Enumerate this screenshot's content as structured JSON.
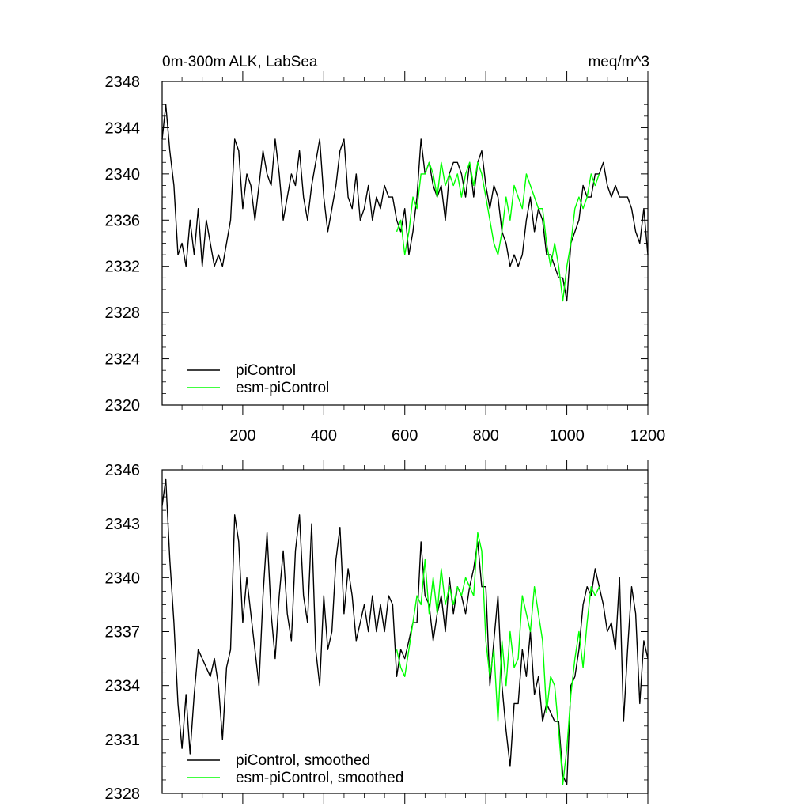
{
  "chart_data": [
    {
      "type": "line",
      "title_left": "0m-300m ALK, LabSea",
      "title_right": "meq/m^3",
      "xlim": [
        1,
        1200
      ],
      "ylim": [
        2320,
        2348
      ],
      "yticks": [
        2320,
        2324,
        2328,
        2332,
        2336,
        2340,
        2344,
        2348
      ],
      "ytick_labels": [
        "2320",
        "2324",
        "2328",
        "2332",
        "2336",
        "2340",
        "2344",
        "2348"
      ],
      "xticks": [
        200,
        400,
        600,
        800,
        1000,
        1200
      ],
      "xtick_labels": [
        "200",
        "400",
        "600",
        "800",
        "1000",
        "1200"
      ],
      "legend_position": "bottom-left",
      "series": [
        {
          "name": "piControl",
          "color": "#000000",
          "x": [
            1,
            10,
            20,
            30,
            40,
            50,
            60,
            70,
            80,
            90,
            100,
            110,
            120,
            130,
            140,
            150,
            160,
            170,
            180,
            190,
            200,
            210,
            220,
            230,
            240,
            250,
            260,
            270,
            280,
            290,
            300,
            310,
            320,
            330,
            340,
            350,
            360,
            370,
            380,
            390,
            400,
            410,
            420,
            430,
            440,
            450,
            460,
            470,
            480,
            490,
            500,
            510,
            520,
            530,
            540,
            550,
            560,
            570,
            580,
            590,
            600,
            610,
            620,
            630,
            640,
            650,
            660,
            670,
            680,
            690,
            700,
            710,
            720,
            730,
            740,
            750,
            760,
            770,
            780,
            790,
            800,
            810,
            820,
            830,
            840,
            850,
            860,
            870,
            880,
            890,
            900,
            910,
            920,
            930,
            940,
            950,
            960,
            970,
            980,
            990,
            1000,
            1010,
            1020,
            1030,
            1040,
            1050,
            1060,
            1070,
            1080,
            1090,
            1100,
            1110,
            1120,
            1130,
            1140,
            1150,
            1160,
            1170,
            1180,
            1190,
            1200
          ],
          "values": [
            2343,
            2346,
            2342,
            2339,
            2333,
            2334,
            2332,
            2336,
            2333,
            2337,
            2332,
            2336,
            2334,
            2332,
            2333,
            2332,
            2334,
            2336,
            2343,
            2342,
            2337,
            2340,
            2339,
            2336,
            2339,
            2342,
            2340,
            2339,
            2343,
            2340,
            2336,
            2338,
            2340,
            2339,
            2342,
            2338,
            2336,
            2339,
            2341,
            2343,
            2338,
            2335,
            2337,
            2339,
            2342,
            2343,
            2338,
            2337,
            2340,
            2336,
            2337,
            2339,
            2336,
            2338,
            2337,
            2339,
            2338,
            2338,
            2336,
            2335,
            2337,
            2333,
            2335,
            2338,
            2343,
            2340,
            2341,
            2339,
            2338,
            2339,
            2336,
            2340,
            2341,
            2341,
            2340,
            2338,
            2341,
            2338,
            2341,
            2342,
            2339,
            2337,
            2339,
            2338,
            2335,
            2334,
            2332,
            2333,
            2332,
            2333,
            2336,
            2338,
            2335,
            2337,
            2336,
            2333,
            2333,
            2332,
            2331,
            2331,
            2329,
            2334,
            2335,
            2336,
            2339,
            2338,
            2338,
            2340,
            2340,
            2341,
            2339,
            2338,
            2339,
            2338,
            2338,
            2338,
            2337,
            2335,
            2334,
            2337,
            2333
          ]
        },
        {
          "name": "esm-piControl",
          "color": "#00ff00",
          "x": [
            580,
            590,
            600,
            610,
            620,
            630,
            640,
            650,
            660,
            670,
            680,
            690,
            700,
            710,
            720,
            730,
            740,
            750,
            760,
            770,
            780,
            790,
            800,
            810,
            820,
            830,
            840,
            850,
            860,
            870,
            880,
            890,
            900,
            910,
            920,
            930,
            940,
            950,
            960,
            970,
            980,
            990,
            1000,
            1010,
            1020,
            1030,
            1040,
            1050,
            1060,
            1070,
            1080
          ],
          "values": [
            2335,
            2336,
            2333,
            2335,
            2338,
            2337,
            2340,
            2340,
            2341,
            2340,
            2338,
            2341,
            2339,
            2340,
            2339,
            2340,
            2338,
            2340,
            2341,
            2339,
            2341,
            2340,
            2338,
            2336,
            2334,
            2333,
            2335,
            2338,
            2336,
            2339,
            2338,
            2337,
            2340,
            2339,
            2338,
            2337,
            2337,
            2334,
            2332,
            2334,
            2332,
            2329,
            2332,
            2334,
            2337,
            2338,
            2337,
            2338,
            2340,
            2339,
            2340
          ]
        }
      ]
    },
    {
      "type": "line",
      "xlim": [
        1,
        1200
      ],
      "ylim": [
        2328,
        2346
      ],
      "yticks": [
        2328,
        2331,
        2334,
        2337,
        2340,
        2343,
        2346
      ],
      "ytick_labels": [
        "2328",
        "2331",
        "2334",
        "2337",
        "2340",
        "2343",
        "2346"
      ],
      "xticks": [
        200,
        400,
        600,
        800,
        1000,
        1200
      ],
      "legend_position": "bottom-left",
      "series": [
        {
          "name": "piControl, smoothed",
          "color": "#000000",
          "x": [
            1,
            10,
            20,
            30,
            40,
            50,
            60,
            70,
            80,
            90,
            100,
            110,
            120,
            130,
            140,
            150,
            160,
            170,
            180,
            190,
            200,
            210,
            220,
            230,
            240,
            250,
            260,
            270,
            280,
            290,
            300,
            310,
            320,
            330,
            340,
            350,
            360,
            370,
            380,
            390,
            400,
            410,
            420,
            430,
            440,
            450,
            460,
            470,
            480,
            490,
            500,
            510,
            520,
            530,
            540,
            550,
            560,
            570,
            580,
            590,
            600,
            610,
            620,
            630,
            640,
            650,
            660,
            670,
            680,
            690,
            700,
            710,
            720,
            730,
            740,
            750,
            760,
            770,
            780,
            790,
            800,
            810,
            820,
            830,
            840,
            850,
            860,
            870,
            880,
            890,
            900,
            910,
            920,
            930,
            940,
            950,
            960,
            970,
            980,
            990,
            1000,
            1010,
            1020,
            1030,
            1040,
            1050,
            1060,
            1070,
            1080,
            1090,
            1100,
            1110,
            1120,
            1130,
            1140,
            1150,
            1160,
            1170,
            1180,
            1190,
            1200
          ],
          "values": [
            2344,
            2345.5,
            2341,
            2337.5,
            2333,
            2330.5,
            2333.5,
            2330.2,
            2333.5,
            2336,
            2335.5,
            2335,
            2334.5,
            2335.5,
            2334,
            2331,
            2335,
            2336,
            2343.5,
            2342,
            2337.5,
            2340,
            2338,
            2336,
            2334,
            2339,
            2342.5,
            2338,
            2335.5,
            2339,
            2341.5,
            2338,
            2336.5,
            2341.5,
            2343.5,
            2339,
            2337.5,
            2343,
            2336,
            2334,
            2339,
            2336,
            2337,
            2341,
            2342.8,
            2338,
            2340.5,
            2339,
            2336.5,
            2337.5,
            2338.5,
            2337,
            2339,
            2337,
            2338.5,
            2337,
            2339,
            2338.5,
            2334.5,
            2336,
            2335.5,
            2336.5,
            2337.5,
            2337.5,
            2342,
            2339,
            2338.5,
            2336.5,
            2338,
            2339,
            2337,
            2340,
            2338,
            2339.5,
            2339,
            2338,
            2339.5,
            2340.5,
            2342,
            2339.5,
            2339.5,
            2334,
            2336.5,
            2339,
            2334,
            2331.5,
            2329.5,
            2333,
            2333,
            2336,
            2334.5,
            2337,
            2333.5,
            2334.5,
            2332,
            2333,
            2332.5,
            2332,
            2332,
            2329,
            2328.5,
            2334,
            2334.5,
            2336,
            2338.5,
            2339.5,
            2339,
            2340.5,
            2339.5,
            2338.5,
            2337,
            2337.5,
            2336,
            2340,
            2332,
            2336,
            2339.5,
            2338,
            2333,
            2336.5,
            2335.5
          ]
        },
        {
          "name": "esm-piControl, smoothed",
          "color": "#00ff00",
          "x": [
            580,
            590,
            600,
            610,
            620,
            630,
            640,
            650,
            660,
            670,
            680,
            690,
            700,
            710,
            720,
            730,
            740,
            750,
            760,
            770,
            780,
            790,
            800,
            810,
            820,
            830,
            840,
            850,
            860,
            870,
            880,
            890,
            900,
            910,
            920,
            930,
            940,
            950,
            960,
            970,
            980,
            990,
            1000,
            1010,
            1020,
            1030,
            1040,
            1050,
            1060,
            1070,
            1080
          ],
          "values": [
            2336,
            2335,
            2334.5,
            2336,
            2337.5,
            2339,
            2338.5,
            2341,
            2338,
            2340,
            2338,
            2340.5,
            2338.5,
            2339.5,
            2338.5,
            2339.5,
            2339,
            2340,
            2339.5,
            2339,
            2342.5,
            2341.5,
            2336.5,
            2334.5,
            2336,
            2332,
            2336.5,
            2334,
            2337,
            2335,
            2335.5,
            2339,
            2338,
            2337,
            2339.5,
            2338,
            2336.5,
            2332.5,
            2334.5,
            2334,
            2331.5,
            2328.5,
            2330.5,
            2333.5,
            2335.5,
            2337,
            2335,
            2337.5,
            2339.5,
            2339,
            2339.5
          ]
        }
      ]
    }
  ]
}
